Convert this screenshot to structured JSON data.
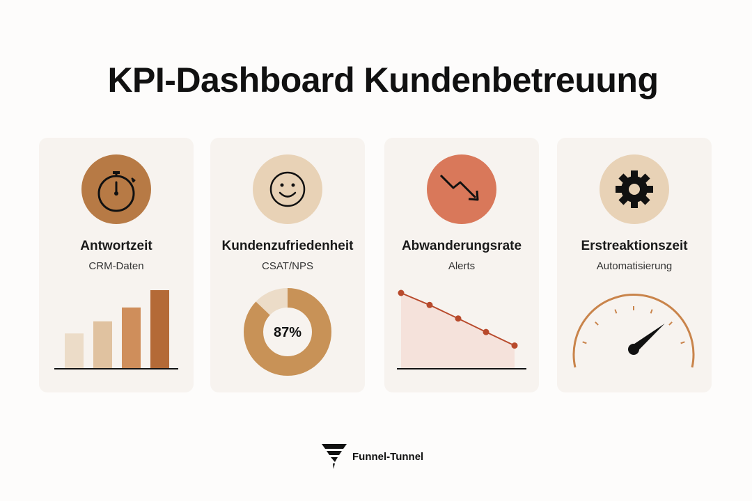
{
  "title": "KPI-Dashboard Kundenbetreuung",
  "cards": [
    {
      "title": "Antwortzeit",
      "subtitle": "CRM-Daten",
      "icon": "stopwatch-icon",
      "icon_bg": "#b77a45"
    },
    {
      "title": "Kundenzufriedenheit",
      "subtitle": "CSAT/NPS",
      "icon": "smiley-icon",
      "icon_bg": "#e8d2b6"
    },
    {
      "title": "Abwanderungsrate",
      "subtitle": "Alerts",
      "icon": "trend-down-icon",
      "icon_bg": "#d9785a"
    },
    {
      "title": "Erstreaktionszeit",
      "subtitle": "Automatisierung",
      "icon": "gear-icon",
      "icon_bg": "#e8d2b6"
    }
  ],
  "bar_chart": {
    "values": [
      2,
      2.7,
      3.5,
      4.5
    ],
    "colors": [
      "#ecdcc8",
      "#e0c2a0",
      "#cf8e5b",
      "#b46a37"
    ],
    "max": 4.5
  },
  "donut": {
    "label": "87%",
    "value": 0.87,
    "colors": {
      "filled": "#c89257",
      "rest": "#ecdcc8"
    }
  },
  "line_chart": {
    "values": [
      5,
      4.2,
      3.3,
      2.4,
      1.5
    ],
    "color": "#b84a2c",
    "fill": "#f4ddd6"
  },
  "gauge": {
    "value": 0.78,
    "color": "#c9844b"
  },
  "brand": {
    "name": "Funnel-Tunnel"
  }
}
